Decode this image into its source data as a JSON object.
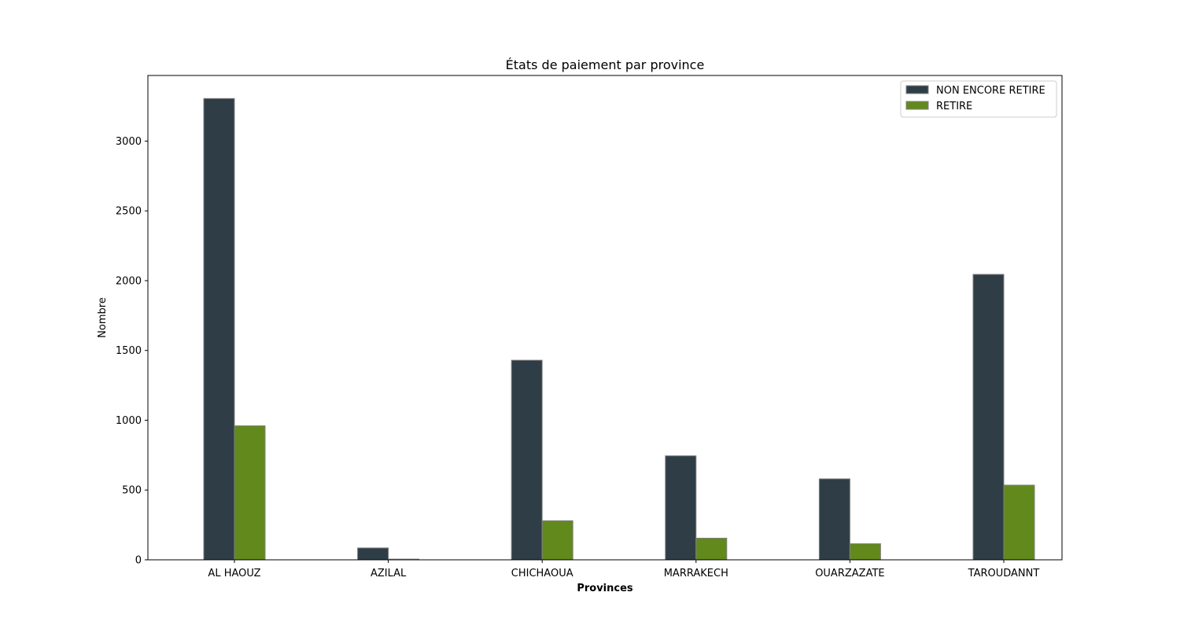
{
  "chart_data": {
    "type": "bar",
    "title": "États de paiement par province",
    "xlabel": "Provinces",
    "ylabel": "Nombre",
    "categories": [
      "AL HAOUZ",
      "AZILAL",
      "CHICHAOUA",
      "MARRAKECH",
      "OUARZAZATE",
      "TAROUDANNT"
    ],
    "series": [
      {
        "name": "NON ENCORE RETIRE",
        "color": "#2f3e46",
        "values": [
          3305,
          85,
          1430,
          745,
          580,
          2045
        ]
      },
      {
        "name": "RETIRE",
        "color": "#61891c",
        "values": [
          960,
          5,
          280,
          155,
          115,
          535
        ]
      }
    ],
    "ylim": [
      0,
      3470
    ],
    "yticks": [
      0,
      500,
      1000,
      1500,
      2000,
      2500,
      3000
    ],
    "ytick_labels": [
      "0",
      "500",
      "1000",
      "1500",
      "2000",
      "2500",
      "3000"
    ],
    "legend_position": "upper right",
    "grid": false,
    "bar_edge_color": "#808080"
  }
}
